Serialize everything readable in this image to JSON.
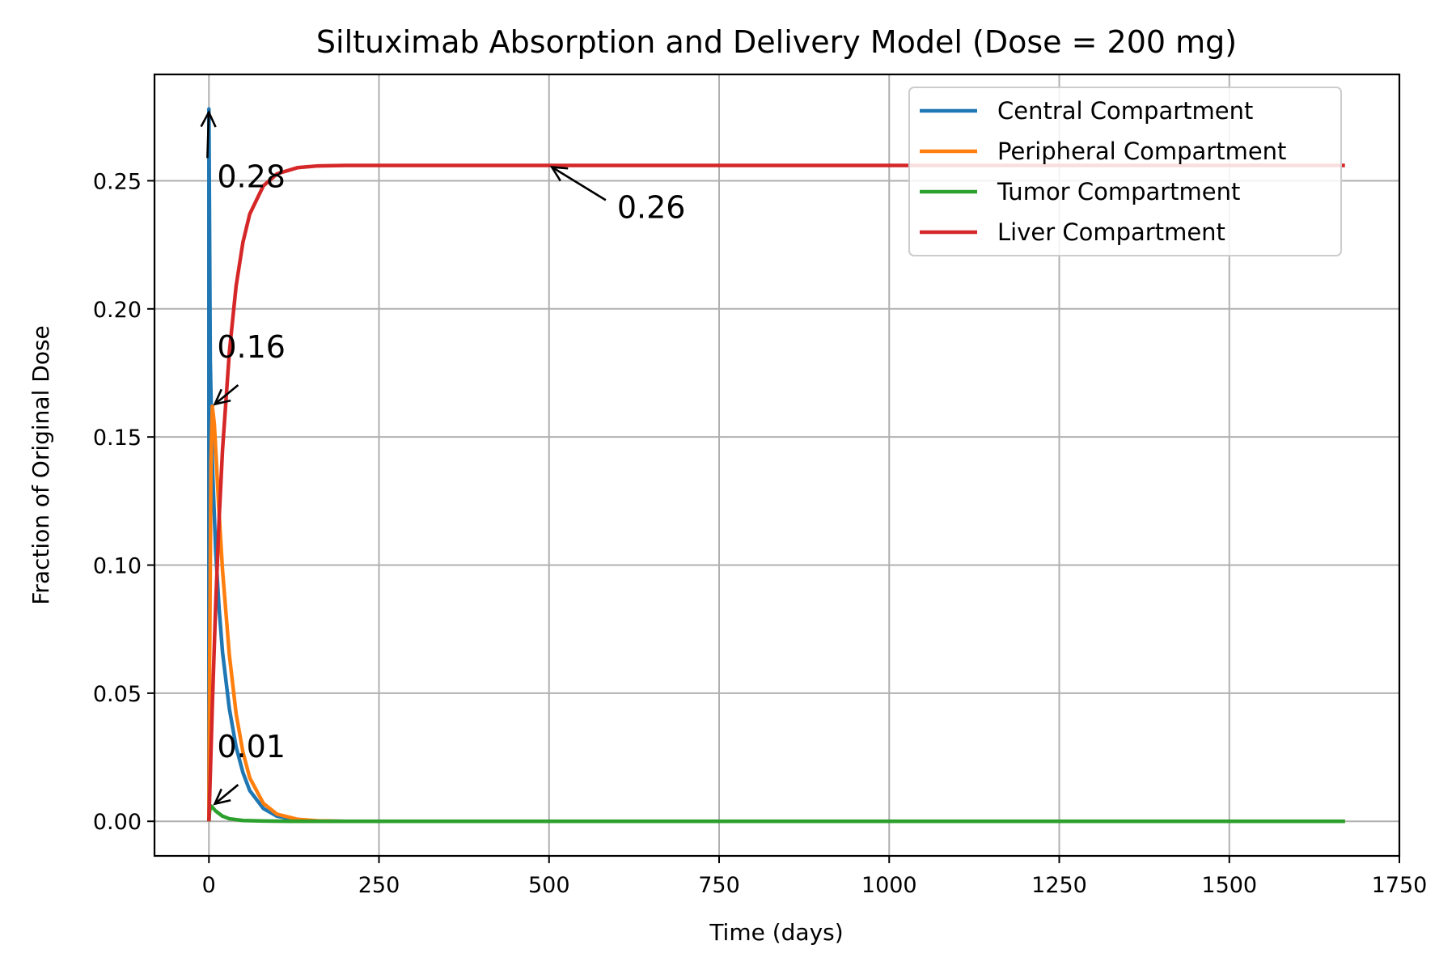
{
  "chart_data": {
    "type": "line",
    "title": "Siltuximab Absorption and Delivery Model (Dose = 200 mg)",
    "xlabel": "Time (days)",
    "ylabel": "Fraction of Original Dose",
    "xlim": [
      -80,
      1750
    ],
    "ylim": [
      -0.0135,
      0.2915
    ],
    "xticks": [
      0,
      250,
      500,
      750,
      1000,
      1250,
      1500,
      1750
    ],
    "xtick_labels": [
      "0",
      "250",
      "500",
      "750",
      "1000",
      "1250",
      "1500",
      "1750"
    ],
    "yticks": [
      0.0,
      0.05,
      0.1,
      0.15,
      0.2,
      0.25
    ],
    "ytick_labels": [
      "0.00",
      "0.05",
      "0.10",
      "0.15",
      "0.20",
      "0.25"
    ],
    "grid": true,
    "legend_position": "top-right",
    "series": [
      {
        "name": "Central Compartment",
        "color": "#1f77b4",
        "x": [
          0,
          0,
          2,
          5,
          10,
          15,
          20,
          30,
          40,
          50,
          60,
          80,
          100,
          130,
          160,
          200,
          300,
          500,
          1000,
          1670
        ],
        "y": [
          0.0,
          0.278,
          0.18,
          0.14,
          0.105,
          0.083,
          0.066,
          0.044,
          0.029,
          0.019,
          0.012,
          0.005,
          0.002,
          0.0005,
          0.0001,
          0.0,
          0.0,
          0.0,
          0.0,
          0.0
        ]
      },
      {
        "name": "Peripheral Compartment",
        "color": "#ff7f0e",
        "x": [
          0,
          1,
          3,
          5,
          8,
          10,
          15,
          20,
          30,
          40,
          50,
          60,
          80,
          100,
          130,
          160,
          200,
          300,
          1000,
          1670
        ],
        "y": [
          0.0,
          0.06,
          0.14,
          0.162,
          0.155,
          0.145,
          0.12,
          0.098,
          0.065,
          0.042,
          0.027,
          0.017,
          0.007,
          0.0028,
          0.0008,
          0.0002,
          0.0,
          0.0,
          0.0,
          0.0
        ]
      },
      {
        "name": "Tumor Compartment",
        "color": "#2ca02c",
        "x": [
          0,
          1,
          3,
          5,
          10,
          20,
          30,
          50,
          80,
          120,
          200,
          500,
          1000,
          1670
        ],
        "y": [
          0.0,
          0.004,
          0.006,
          0.0055,
          0.004,
          0.002,
          0.001,
          0.0003,
          0.0001,
          0.0,
          0.0,
          0.0,
          0.0,
          0.0
        ]
      },
      {
        "name": "Liver Compartment",
        "color": "#d62728",
        "x": [
          0,
          5,
          10,
          15,
          20,
          30,
          40,
          50,
          60,
          80,
          100,
          130,
          160,
          200,
          300,
          500,
          1000,
          1670
        ],
        "y": [
          0.0,
          0.045,
          0.085,
          0.118,
          0.145,
          0.183,
          0.209,
          0.226,
          0.237,
          0.248,
          0.2527,
          0.2551,
          0.2558,
          0.256,
          0.256,
          0.256,
          0.256,
          0.256
        ]
      }
    ],
    "annotations": [
      {
        "text": "0.28",
        "x": 0,
        "y": 0.278,
        "text_x": 12,
        "text_y": 0.2475
      },
      {
        "text": "0.16",
        "x": 5,
        "y": 0.162,
        "text_x": 12,
        "text_y": 0.181
      },
      {
        "text": "0.26",
        "x": 500,
        "y": 0.256,
        "text_x": 600,
        "text_y": 0.2355
      },
      {
        "text": "0.01",
        "x": 5,
        "y": 0.006,
        "text_x": 12,
        "text_y": 0.025
      }
    ]
  }
}
